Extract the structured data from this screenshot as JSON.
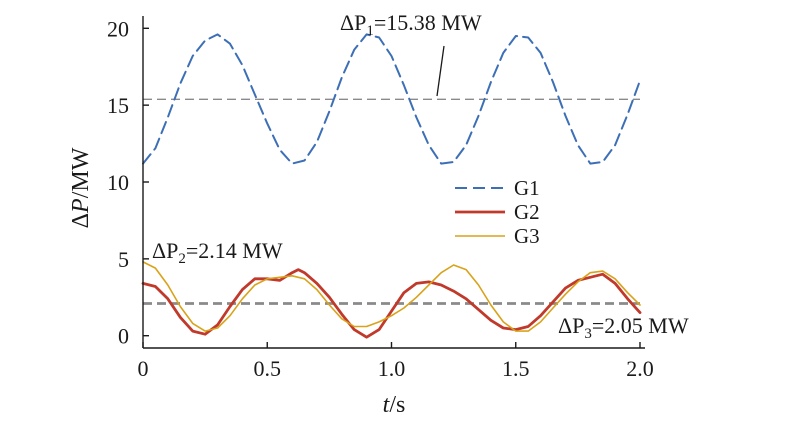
{
  "chart_data": {
    "type": "line",
    "title": "",
    "xlabel": {
      "var": "t",
      "unit": "/s"
    },
    "ylabel": {
      "var": "P",
      "unit": "/MW",
      "prefix": "Δ"
    },
    "xlim": [
      0,
      2.0
    ],
    "ylim": [
      -0.8,
      20.8
    ],
    "grid": false,
    "legend_position": "center",
    "x_ticks": [
      "0",
      "0.5",
      "1.0",
      "1.5",
      "2.0"
    ],
    "y_ticks": [
      "0",
      "5",
      "10",
      "15",
      "20"
    ],
    "series": [
      {
        "name": "G1",
        "style": "dashed",
        "color": "#3d6fb6",
        "points": [
          [
            0.0,
            11.2
          ],
          [
            0.05,
            12.2
          ],
          [
            0.1,
            14.2
          ],
          [
            0.15,
            16.4
          ],
          [
            0.2,
            18.2
          ],
          [
            0.25,
            19.2
          ],
          [
            0.3,
            19.6
          ],
          [
            0.35,
            19.0
          ],
          [
            0.4,
            17.6
          ],
          [
            0.45,
            15.7
          ],
          [
            0.5,
            13.8
          ],
          [
            0.55,
            12.1
          ],
          [
            0.6,
            11.2
          ],
          [
            0.65,
            11.4
          ],
          [
            0.7,
            12.6
          ],
          [
            0.75,
            14.6
          ],
          [
            0.8,
            16.8
          ],
          [
            0.85,
            18.6
          ],
          [
            0.9,
            19.6
          ],
          [
            0.95,
            19.4
          ],
          [
            1.0,
            18.2
          ],
          [
            1.05,
            16.3
          ],
          [
            1.1,
            14.2
          ],
          [
            1.15,
            12.4
          ],
          [
            1.2,
            11.2
          ],
          [
            1.25,
            11.3
          ],
          [
            1.3,
            12.4
          ],
          [
            1.35,
            14.3
          ],
          [
            1.4,
            16.5
          ],
          [
            1.45,
            18.4
          ],
          [
            1.5,
            19.5
          ],
          [
            1.55,
            19.4
          ],
          [
            1.6,
            18.4
          ],
          [
            1.65,
            16.5
          ],
          [
            1.7,
            14.3
          ],
          [
            1.75,
            12.4
          ],
          [
            1.8,
            11.2
          ],
          [
            1.85,
            11.3
          ],
          [
            1.9,
            12.4
          ],
          [
            1.95,
            14.4
          ],
          [
            2.0,
            16.6
          ]
        ]
      },
      {
        "name": "G2",
        "style": "solid",
        "color": "#c0392b",
        "points": [
          [
            0.0,
            3.4
          ],
          [
            0.05,
            3.2
          ],
          [
            0.1,
            2.4
          ],
          [
            0.15,
            1.2
          ],
          [
            0.2,
            0.3
          ],
          [
            0.25,
            0.1
          ],
          [
            0.3,
            0.7
          ],
          [
            0.35,
            1.9
          ],
          [
            0.4,
            3.0
          ],
          [
            0.45,
            3.7
          ],
          [
            0.5,
            3.7
          ],
          [
            0.55,
            3.6
          ],
          [
            0.6,
            4.1
          ],
          [
            0.625,
            4.3
          ],
          [
            0.65,
            4.1
          ],
          [
            0.7,
            3.4
          ],
          [
            0.75,
            2.5
          ],
          [
            0.8,
            1.4
          ],
          [
            0.85,
            0.4
          ],
          [
            0.9,
            -0.1
          ],
          [
            0.95,
            0.4
          ],
          [
            1.0,
            1.6
          ],
          [
            1.05,
            2.8
          ],
          [
            1.1,
            3.4
          ],
          [
            1.15,
            3.5
          ],
          [
            1.2,
            3.3
          ],
          [
            1.25,
            2.9
          ],
          [
            1.3,
            2.4
          ],
          [
            1.35,
            1.7
          ],
          [
            1.4,
            1.0
          ],
          [
            1.45,
            0.5
          ],
          [
            1.5,
            0.4
          ],
          [
            1.55,
            0.6
          ],
          [
            1.6,
            1.3
          ],
          [
            1.65,
            2.2
          ],
          [
            1.7,
            3.1
          ],
          [
            1.75,
            3.6
          ],
          [
            1.8,
            3.8
          ],
          [
            1.85,
            4.0
          ],
          [
            1.9,
            3.4
          ],
          [
            1.95,
            2.4
          ],
          [
            2.0,
            1.5
          ]
        ]
      },
      {
        "name": "G3",
        "style": "solid",
        "color": "#d9a21a",
        "points": [
          [
            0.0,
            4.8
          ],
          [
            0.05,
            4.4
          ],
          [
            0.1,
            3.3
          ],
          [
            0.15,
            1.9
          ],
          [
            0.2,
            0.8
          ],
          [
            0.25,
            0.3
          ],
          [
            0.3,
            0.5
          ],
          [
            0.35,
            1.3
          ],
          [
            0.4,
            2.4
          ],
          [
            0.45,
            3.3
          ],
          [
            0.5,
            3.7
          ],
          [
            0.55,
            3.8
          ],
          [
            0.6,
            3.9
          ],
          [
            0.65,
            3.7
          ],
          [
            0.7,
            3.0
          ],
          [
            0.75,
            2.0
          ],
          [
            0.8,
            1.1
          ],
          [
            0.85,
            0.6
          ],
          [
            0.9,
            0.6
          ],
          [
            0.95,
            0.9
          ],
          [
            1.0,
            1.3
          ],
          [
            1.05,
            1.8
          ],
          [
            1.1,
            2.5
          ],
          [
            1.15,
            3.3
          ],
          [
            1.2,
            4.1
          ],
          [
            1.25,
            4.6
          ],
          [
            1.3,
            4.3
          ],
          [
            1.35,
            3.3
          ],
          [
            1.4,
            2.0
          ],
          [
            1.45,
            0.9
          ],
          [
            1.5,
            0.3
          ],
          [
            1.55,
            0.3
          ],
          [
            1.6,
            0.9
          ],
          [
            1.65,
            1.8
          ],
          [
            1.7,
            2.7
          ],
          [
            1.75,
            3.5
          ],
          [
            1.8,
            4.1
          ],
          [
            1.85,
            4.2
          ],
          [
            1.9,
            3.7
          ],
          [
            1.95,
            2.8
          ],
          [
            2.0,
            2.0
          ]
        ]
      }
    ],
    "reference_lines": [
      {
        "y": 15.38,
        "style": "dashed",
        "color": "#8a8a8a"
      },
      {
        "y": 2.14,
        "style": "dashed",
        "color": "#8a8a8a"
      },
      {
        "y": 2.05,
        "style": "dashed",
        "color": "#8a8a8a"
      }
    ],
    "annotations": [
      {
        "id": "p1",
        "prefix": "ΔP",
        "sub": "1",
        "text": "=15.38 MW",
        "arrow_to": [
          1.18,
          15.38
        ]
      },
      {
        "id": "p2",
        "prefix": "ΔP",
        "sub": "2",
        "text": "=2.14 MW"
      },
      {
        "id": "p3",
        "prefix": "ΔP",
        "sub": "3",
        "text": "=2.05 MW"
      }
    ]
  }
}
